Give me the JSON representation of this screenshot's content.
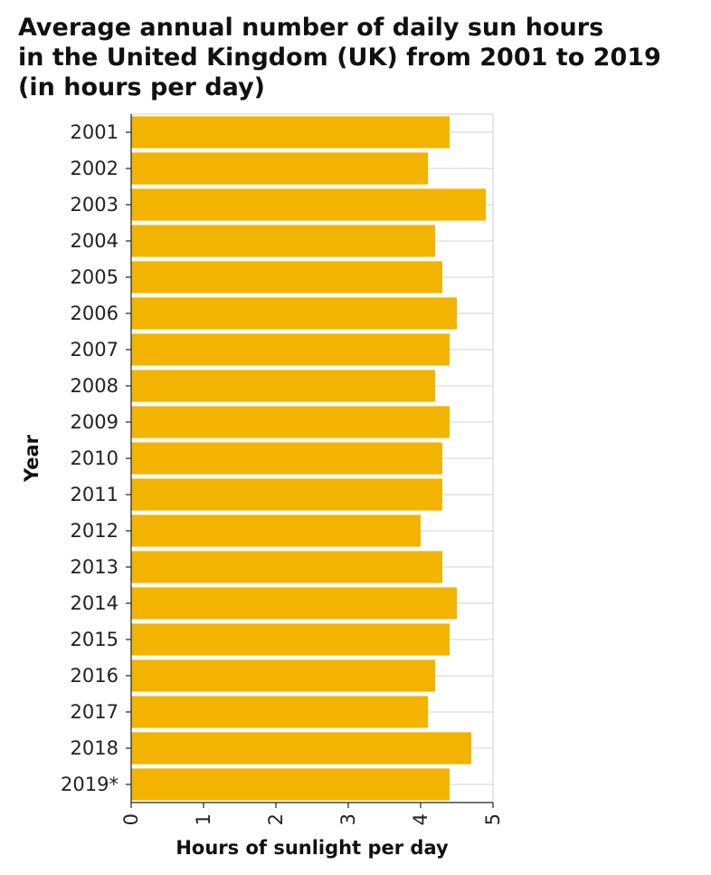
{
  "chart_data": {
    "type": "bar",
    "orientation": "horizontal",
    "title_lines": [
      "Average annual number of daily sun hours",
      "in the United Kingdom (UK) from 2001 to 2019",
      "(in hours per day)"
    ],
    "xlabel": "Hours of sunlight per day",
    "ylabel": "Year",
    "xlim": [
      0,
      5
    ],
    "xticks": [
      "0",
      "1",
      "2",
      "3",
      "4",
      "5"
    ],
    "grid": true,
    "bar_color": "#f2b400",
    "categories": [
      "2001",
      "2002",
      "2003",
      "2004",
      "2005",
      "2006",
      "2007",
      "2008",
      "2009",
      "2010",
      "2011",
      "2012",
      "2013",
      "2014",
      "2015",
      "2016",
      "2017",
      "2018",
      "2019*"
    ],
    "values": [
      4.4,
      4.1,
      4.9,
      4.2,
      4.3,
      4.5,
      4.4,
      4.2,
      4.4,
      4.3,
      4.3,
      4.0,
      4.3,
      4.5,
      4.4,
      4.2,
      4.1,
      4.7,
      4.4
    ]
  }
}
